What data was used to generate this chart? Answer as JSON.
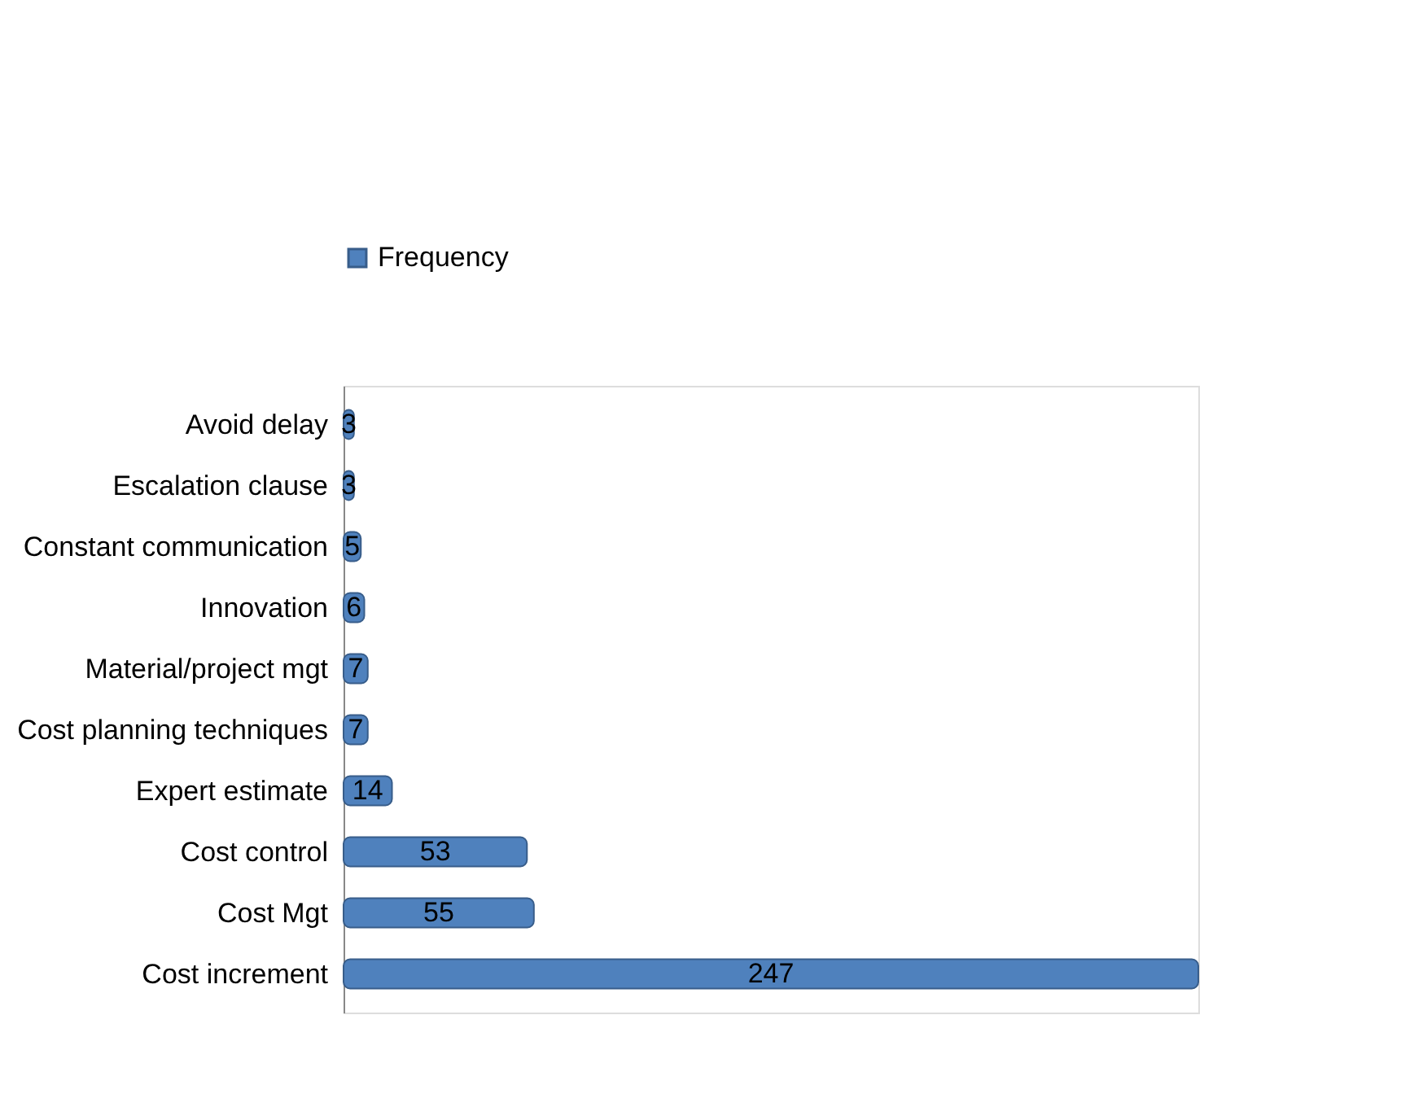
{
  "chart_data": {
    "type": "bar",
    "orientation": "horizontal",
    "categories": [
      "Avoid delay",
      "Escalation clause",
      "Constant communication",
      "Innovation",
      "Material/project mgt",
      "Cost planning techniques",
      "Expert estimate",
      "Cost control",
      "Cost Mgt",
      "Cost increment"
    ],
    "series": [
      {
        "name": "Frequency",
        "color": "#4f81bd",
        "values": [
          3,
          3,
          5,
          6,
          7,
          7,
          14,
          53,
          55,
          247
        ]
      }
    ],
    "data_labels": true,
    "legend": "top",
    "grid": false,
    "tick_labels": "y"
  }
}
